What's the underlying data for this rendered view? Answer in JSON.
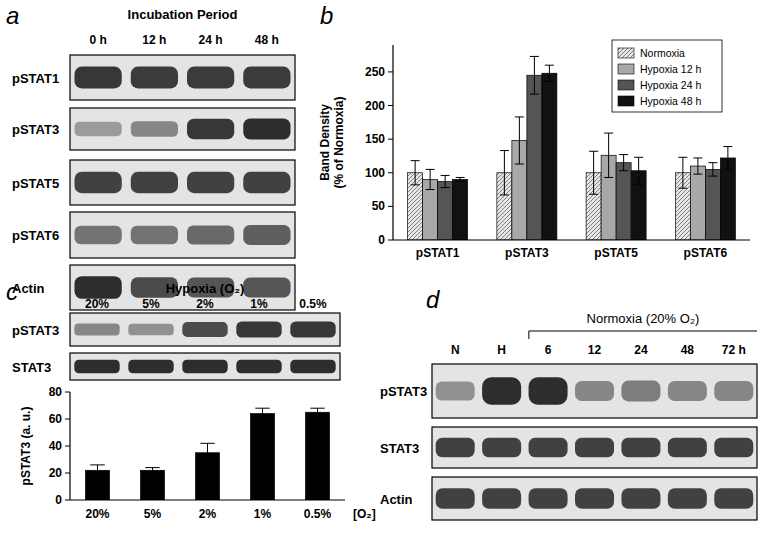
{
  "panel_labels": [
    "a",
    "b",
    "c",
    "d"
  ],
  "chart_data": [
    {
      "type": "bar",
      "y_label": "Band Density (% of Normoxia)",
      "categories": [
        "pSTAT1",
        "pSTAT3",
        "pSTAT5",
        "pSTAT6"
      ],
      "series": [
        {
          "name": "Normoxia",
          "color": "#e6e6e6",
          "marker": "hatch",
          "values": [
            100,
            100,
            100,
            100
          ],
          "errors": [
            18,
            33,
            32,
            23
          ]
        },
        {
          "name": "Hypoxia 12 h",
          "color": "#a8a8a8",
          "values": [
            90,
            148,
            126,
            110
          ],
          "errors": [
            15,
            35,
            33,
            12
          ]
        },
        {
          "name": "Hypoxia 24 h",
          "color": "#555555",
          "values": [
            87,
            245,
            115,
            105
          ],
          "errors": [
            9,
            28,
            12,
            10
          ]
        },
        {
          "name": "Hypoxia 48 h",
          "color": "#111111",
          "values": [
            90,
            248,
            103,
            122
          ],
          "errors": [
            3,
            12,
            20,
            17
          ]
        }
      ],
      "ylim": [
        0,
        290
      ],
      "yticks": [
        0,
        50,
        100,
        150,
        200,
        250
      ],
      "grid": false,
      "legend": "upper right"
    },
    {
      "type": "bar",
      "y_label": "pSTAT3 (a. u.)",
      "x_label": "[O₂]",
      "categories": [
        "20%",
        "5%",
        "2%",
        "1%",
        "0.5%"
      ],
      "values": [
        22,
        22,
        35,
        64,
        65
      ],
      "errors": [
        4,
        2,
        7,
        4,
        3
      ],
      "color": "#000000",
      "ylim": [
        0,
        80
      ],
      "yticks": [
        0,
        20,
        40,
        60,
        80
      ],
      "grid": false
    }
  ],
  "blots": [
    {
      "title": "Incubation Period",
      "lanes": [
        "0 h",
        "12 h",
        "24 h",
        "48 h"
      ],
      "rows": [
        {
          "label": "pSTAT1",
          "bands": [
            0.9,
            0.88,
            0.88,
            0.88
          ]
        },
        {
          "label": "pSTAT3",
          "bands": [
            0.4,
            0.5,
            0.9,
            0.95
          ]
        },
        {
          "label": "pSTAT5",
          "bands": [
            0.85,
            0.85,
            0.85,
            0.85
          ]
        },
        {
          "label": "pSTAT6",
          "bands": [
            0.6,
            0.6,
            0.65,
            0.7
          ]
        },
        {
          "label": "Actin",
          "bands": [
            0.95,
            0.8,
            0.75,
            0.75
          ]
        }
      ]
    },
    {
      "title": "Hypoxia (O₂)",
      "lanes": [
        "20%",
        "5%",
        "2%",
        "1%",
        "0.5%"
      ],
      "rows": [
        {
          "label": "pSTAT3",
          "bands": [
            0.5,
            0.45,
            0.8,
            0.9,
            0.9
          ]
        },
        {
          "label": "STAT3",
          "bands": [
            0.95,
            0.95,
            0.95,
            0.95,
            0.95
          ]
        }
      ]
    },
    {
      "title": "Normoxia (20% O₂)",
      "lanes": [
        "N",
        "H",
        "6",
        "12",
        "24",
        "48",
        "72 h"
      ],
      "rows": [
        {
          "label": "pSTAT3",
          "bands": [
            0.45,
            0.95,
            0.95,
            0.5,
            0.55,
            0.5,
            0.5
          ]
        },
        {
          "label": "STAT3",
          "bands": [
            0.85,
            0.85,
            0.85,
            0.85,
            0.85,
            0.85,
            0.85
          ]
        },
        {
          "label": "Actin",
          "bands": [
            0.85,
            0.85,
            0.85,
            0.85,
            0.85,
            0.85,
            0.85
          ]
        }
      ]
    }
  ]
}
